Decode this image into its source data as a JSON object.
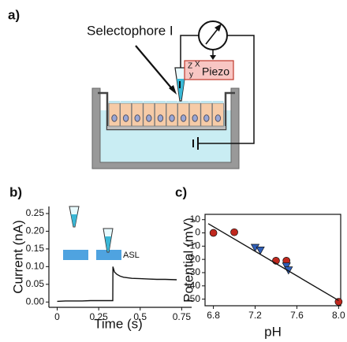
{
  "panel_a": {
    "label": "a)",
    "electrode": "Selectophore I",
    "piezo": "Piezo",
    "axes": [
      "Z",
      "X",
      "y"
    ]
  },
  "chart_data": [
    {
      "type": "line",
      "label": "b)",
      "xlabel": "Time (s)",
      "ylabel": "Current (nA)",
      "annotation": "ASL",
      "x": [
        0,
        0.05,
        0.1,
        0.15,
        0.2,
        0.25,
        0.3,
        0.335,
        0.336,
        0.345,
        0.36,
        0.38,
        0.4,
        0.45,
        0.5,
        0.55,
        0.6,
        0.65,
        0.72
      ],
      "series": [
        {
          "color": "#111111",
          "values": [
            0.002,
            0.003,
            0.003,
            0.003,
            0.004,
            0.004,
            0.004,
            0.004,
            0.1,
            0.085,
            0.078,
            0.073,
            0.07,
            0.067,
            0.066,
            0.065,
            0.064,
            0.064,
            0.063
          ]
        }
      ],
      "xlim": [
        -0.05,
        0.81
      ],
      "ylim": [
        -0.015,
        0.27
      ],
      "xticks": [
        0,
        0.25,
        0.5,
        0.75
      ],
      "yticks": [
        {
          "value": 0,
          "label": "0.00"
        },
        {
          "value": 0.05,
          "label": "0.05"
        },
        {
          "value": 0.1,
          "label": "0.10"
        },
        {
          "value": 0.15,
          "label": "0.15"
        },
        {
          "value": 0.2,
          "label": "0.20"
        },
        {
          "value": 0.25,
          "label": "0.25"
        }
      ]
    },
    {
      "type": "scatter",
      "label": "c)",
      "xlabel": "pH",
      "ylabel": "Potential (mV)",
      "series": [
        {
          "marker": "circle",
          "color": "#c0281e",
          "x": [
            6.8,
            7.0,
            7.4,
            7.5,
            8.0
          ],
          "values": [
            0,
            0.5,
            -21,
            -21,
            -52
          ]
        },
        {
          "marker": "triangle",
          "color": "#2f5fb8",
          "x": [
            7.2,
            7.25,
            7.5,
            7.52
          ],
          "values": [
            -11,
            -13,
            -25,
            -28
          ]
        },
        {
          "marker": "line",
          "color": "#111111",
          "x": [
            6.75,
            8.0
          ],
          "values": [
            7,
            -51
          ]
        }
      ],
      "xlim": [
        6.72,
        8.02
      ],
      "ylim": [
        -55,
        14
      ],
      "xticks": [
        6.8,
        7.2,
        7.6,
        {
          "value": 8,
          "label": "8.0"
        }
      ],
      "yticks": [
        10,
        0,
        -10,
        -20,
        -30,
        -40,
        -50
      ]
    }
  ]
}
